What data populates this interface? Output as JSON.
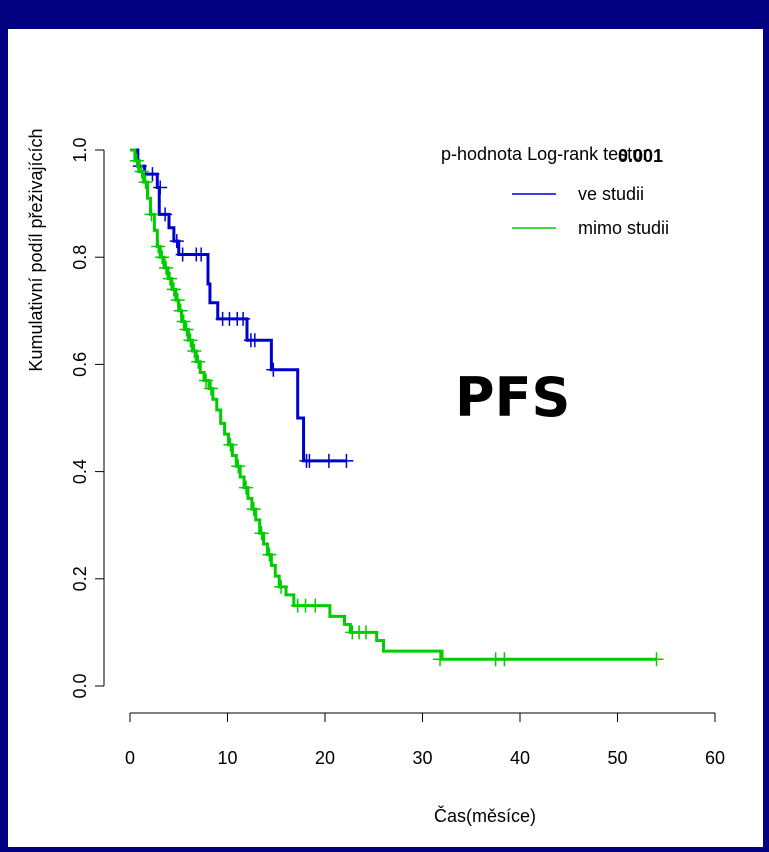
{
  "chart_data": {
    "type": "line",
    "title": "",
    "xlabel": "Čas(měsíce)",
    "ylabel": "Kumulativní podíl přeživajících",
    "xlim": [
      0,
      60
    ],
    "ylim": [
      0,
      1
    ],
    "x_ticks": [
      "0",
      "10",
      "20",
      "30",
      "40",
      "50",
      "60"
    ],
    "y_ticks": [
      "0.0",
      "0.2",
      "0.4",
      "0.6",
      "0.8",
      "1.0"
    ],
    "grid": false,
    "legend_position": "top-right",
    "annotation_label": "p-hodnota Log-rank testu:",
    "annotation_value": "0.001",
    "big_label": "PFS",
    "series": [
      {
        "name": "ve studii",
        "color": "#0000cc",
        "steps": [
          [
            0,
            1.0
          ],
          [
            0.8,
            0.97
          ],
          [
            1.5,
            0.955
          ],
          [
            2.8,
            0.93
          ],
          [
            3.0,
            0.88
          ],
          [
            4.0,
            0.855
          ],
          [
            4.5,
            0.83
          ],
          [
            5.0,
            0.805
          ],
          [
            8.0,
            0.75
          ],
          [
            8.2,
            0.715
          ],
          [
            9.0,
            0.685
          ],
          [
            12.0,
            0.645
          ],
          [
            14.5,
            0.59
          ],
          [
            17.2,
            0.5
          ],
          [
            17.8,
            0.42
          ],
          [
            22.2,
            0.42
          ]
        ],
        "censored": [
          [
            1.0,
            0.97
          ],
          [
            2.3,
            0.955
          ],
          [
            3.1,
            0.93
          ],
          [
            3.6,
            0.88
          ],
          [
            4.8,
            0.83
          ],
          [
            5.4,
            0.805
          ],
          [
            6.8,
            0.805
          ],
          [
            7.3,
            0.805
          ],
          [
            9.5,
            0.685
          ],
          [
            10.2,
            0.685
          ],
          [
            11.0,
            0.685
          ],
          [
            11.6,
            0.685
          ],
          [
            12.4,
            0.645
          ],
          [
            12.8,
            0.645
          ],
          [
            14.7,
            0.59
          ],
          [
            18.1,
            0.42
          ],
          [
            18.4,
            0.42
          ],
          [
            20.4,
            0.42
          ],
          [
            22.2,
            0.42
          ]
        ]
      },
      {
        "name": "mimo studii",
        "color": "#00cc00",
        "steps": [
          [
            0,
            1.0
          ],
          [
            0.5,
            0.98
          ],
          [
            0.9,
            0.96
          ],
          [
            1.4,
            0.94
          ],
          [
            1.8,
            0.91
          ],
          [
            2.1,
            0.88
          ],
          [
            2.5,
            0.85
          ],
          [
            2.8,
            0.82
          ],
          [
            3.1,
            0.8
          ],
          [
            3.5,
            0.78
          ],
          [
            3.9,
            0.76
          ],
          [
            4.3,
            0.74
          ],
          [
            4.7,
            0.72
          ],
          [
            5.0,
            0.7
          ],
          [
            5.3,
            0.68
          ],
          [
            5.6,
            0.665
          ],
          [
            6.0,
            0.645
          ],
          [
            6.4,
            0.625
          ],
          [
            6.8,
            0.605
          ],
          [
            7.2,
            0.585
          ],
          [
            7.6,
            0.57
          ],
          [
            8.1,
            0.555
          ],
          [
            8.5,
            0.535
          ],
          [
            8.9,
            0.515
          ],
          [
            9.3,
            0.49
          ],
          [
            9.7,
            0.47
          ],
          [
            10.1,
            0.45
          ],
          [
            10.5,
            0.43
          ],
          [
            10.9,
            0.41
          ],
          [
            11.3,
            0.39
          ],
          [
            11.7,
            0.37
          ],
          [
            12.1,
            0.35
          ],
          [
            12.5,
            0.33
          ],
          [
            12.9,
            0.31
          ],
          [
            13.3,
            0.285
          ],
          [
            13.7,
            0.265
          ],
          [
            14.1,
            0.245
          ],
          [
            14.5,
            0.225
          ],
          [
            14.9,
            0.205
          ],
          [
            15.3,
            0.185
          ],
          [
            16.0,
            0.17
          ],
          [
            16.8,
            0.15
          ],
          [
            20.5,
            0.13
          ],
          [
            22.0,
            0.115
          ],
          [
            22.6,
            0.1
          ],
          [
            25.3,
            0.085
          ],
          [
            26.0,
            0.065
          ],
          [
            32.0,
            0.05
          ],
          [
            54.0,
            0.05
          ]
        ],
        "censored": [
          [
            0.7,
            0.98
          ],
          [
            1.2,
            0.96
          ],
          [
            1.6,
            0.94
          ],
          [
            2.2,
            0.88
          ],
          [
            2.9,
            0.82
          ],
          [
            3.3,
            0.8
          ],
          [
            3.7,
            0.78
          ],
          [
            4.1,
            0.76
          ],
          [
            4.5,
            0.74
          ],
          [
            4.9,
            0.72
          ],
          [
            5.2,
            0.7
          ],
          [
            5.5,
            0.68
          ],
          [
            5.8,
            0.665
          ],
          [
            6.2,
            0.645
          ],
          [
            6.6,
            0.625
          ],
          [
            7.0,
            0.605
          ],
          [
            7.8,
            0.57
          ],
          [
            8.3,
            0.555
          ],
          [
            10.3,
            0.45
          ],
          [
            11.1,
            0.41
          ],
          [
            11.9,
            0.37
          ],
          [
            12.7,
            0.33
          ],
          [
            13.5,
            0.285
          ],
          [
            14.3,
            0.245
          ],
          [
            15.5,
            0.185
          ],
          [
            17.2,
            0.15
          ],
          [
            18.0,
            0.15
          ],
          [
            19.0,
            0.15
          ],
          [
            22.8,
            0.1
          ],
          [
            23.5,
            0.1
          ],
          [
            24.2,
            0.1
          ],
          [
            31.8,
            0.05
          ],
          [
            37.5,
            0.05
          ],
          [
            38.4,
            0.05
          ],
          [
            54.0,
            0.05
          ]
        ]
      }
    ]
  }
}
